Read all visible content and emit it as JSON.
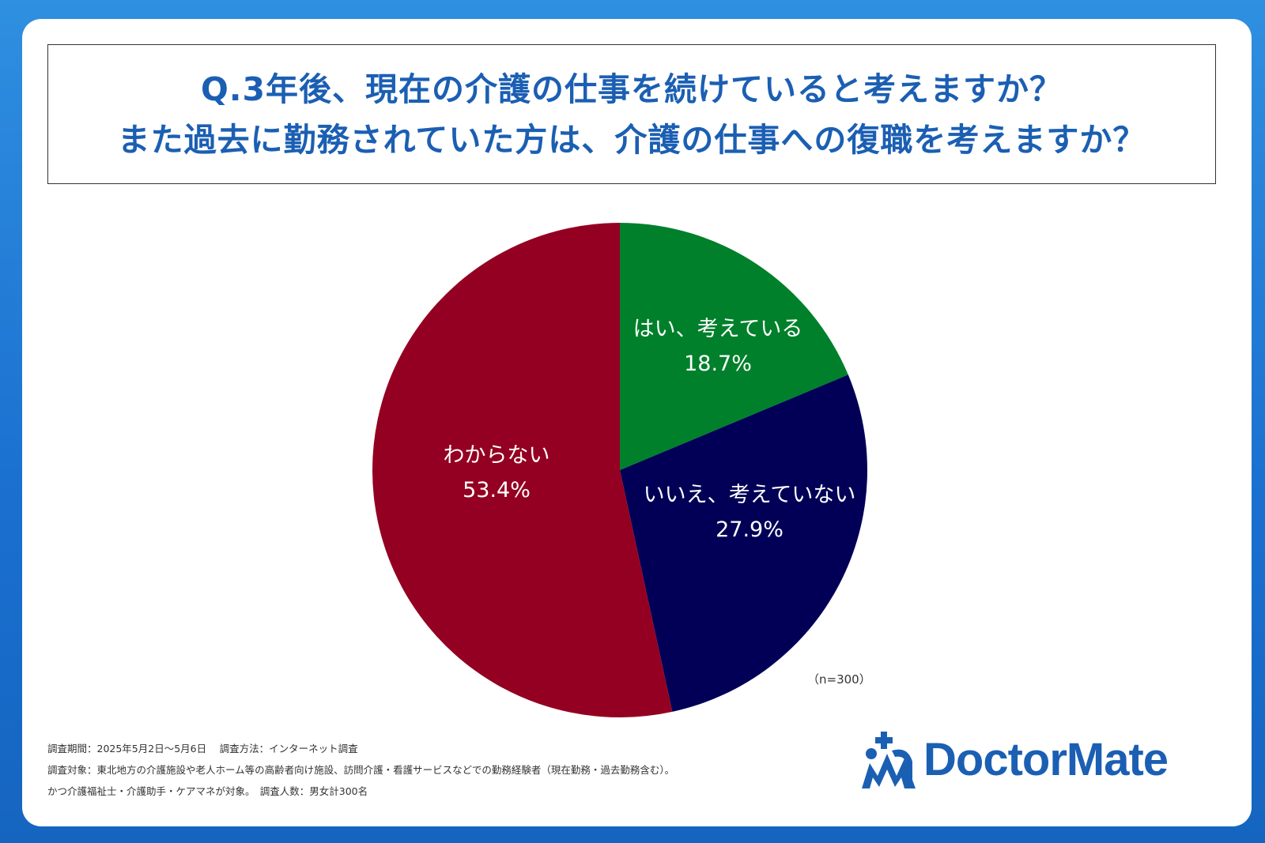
{
  "title": {
    "line1": "Q.3年後、現在の介護の仕事を続けていると考えますか？",
    "line2": "また過去に勤務されていた方は、介護の仕事への復職を考えますか？"
  },
  "chart_data": {
    "type": "pie",
    "start_angle_deg": 0,
    "direction": "clockwise",
    "slices": [
      {
        "label": "はい、考えている",
        "value": 18.7,
        "value_label": "18.7%",
        "color": "#00802b"
      },
      {
        "label": "いいえ、考えていない",
        "value": 27.9,
        "value_label": "27.9%",
        "color": "#020056"
      },
      {
        "label": "わからない",
        "value": 53.4,
        "value_label": "53.4%",
        "color": "#940021"
      }
    ],
    "sample_size": "（n=300）"
  },
  "footnotes": {
    "line1": "調査期間：2025年5月2日～5月6日　 調査方法：インターネット調査",
    "line2": "調査対象：東北地方の介護施設や老人ホーム等の高齢者向け施設、訪問介護・看護サービスなどでの勤務経験者（現在勤務・過去勤務含む）。",
    "line3": "かつ介護福祉士・介護助手・ケアマネが対象。　調査人数：男女計300名"
  },
  "logo": {
    "text": "DoctorMate",
    "color": "#1b5fb3"
  },
  "colors": {
    "background": "#1a6fcf",
    "title": "#1b5fb3"
  }
}
